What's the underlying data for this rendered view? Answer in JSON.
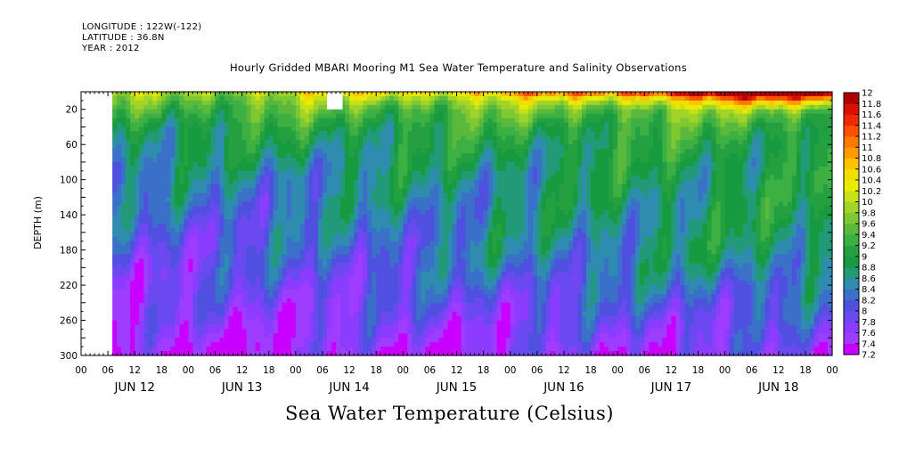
{
  "header": {
    "longitude": "LONGITUDE : 122W(-122)",
    "latitude": "LATITUDE : 36.8N",
    "year": "YEAR : 2012"
  },
  "chart_data": {
    "type": "heatmap",
    "title": "Hourly Gridded MBARI Mooring M1 Sea Water Temperature and Salinity Observations",
    "footer_label": "Sea Water Temperature (Celsius)",
    "ylabel": "DEPTH (m)",
    "ylim": [
      300,
      0
    ],
    "y_ticks": [
      20,
      60,
      100,
      140,
      180,
      220,
      260,
      300
    ],
    "x_range_hours": [
      0,
      168
    ],
    "x_hour_labels": [
      "00",
      "06",
      "12",
      "18",
      "00",
      "06",
      "12",
      "18",
      "00",
      "06",
      "12",
      "18",
      "00",
      "06",
      "12",
      "18",
      "00",
      "06",
      "12",
      "18",
      "00",
      "06",
      "12",
      "18",
      "00",
      "06",
      "12",
      "18",
      "00"
    ],
    "day_labels": [
      "JUN 12",
      "JUN 13",
      "JUN 14",
      "JUN 15",
      "JUN 16",
      "JUN 17",
      "JUN 18"
    ],
    "data_start_hour": 7,
    "missing_block": {
      "hour_start": 55,
      "hour_end": 58.5,
      "depth_start": 0,
      "depth_end": 20
    },
    "colorbar": {
      "levels": [
        "7.2",
        "7.4",
        "7.6",
        "7.8",
        "8",
        "8.2",
        "8.4",
        "8.6",
        "8.8",
        "9",
        "9.2",
        "9.4",
        "9.6",
        "9.8",
        "10",
        "10.2",
        "10.4",
        "10.6",
        "10.8",
        "11",
        "11.2",
        "11.4",
        "11.6",
        "11.8",
        "12"
      ],
      "colors": [
        "#c800ff",
        "#9f3dff",
        "#8c3cff",
        "#6a4af0",
        "#5050e0",
        "#3a70c8",
        "#2f8cb0",
        "#229a78",
        "#179a40",
        "#25a040",
        "#3cb042",
        "#5ab83c",
        "#7ec832",
        "#a0d428",
        "#c8e018",
        "#e8ec00",
        "#f0e000",
        "#ffc400",
        "#ff9a00",
        "#ff7800",
        "#ff5000",
        "#f02800",
        "#d81000",
        "#b00000"
      ]
    },
    "depth_profile": {
      "depths": [
        0,
        10,
        20,
        40,
        60,
        80,
        100,
        120,
        140,
        160,
        180,
        200,
        220,
        240,
        260,
        280,
        300
      ],
      "temp_early": [
        9.9,
        9.6,
        9.4,
        9.0,
        8.8,
        8.6,
        8.4,
        8.3,
        8.2,
        8.1,
        8.0,
        7.9,
        7.8,
        7.7,
        7.6,
        7.45,
        7.35
      ],
      "temp_late": [
        11.6,
        10.3,
        9.7,
        9.3,
        9.1,
        9.0,
        8.95,
        8.9,
        8.85,
        8.8,
        8.75,
        8.6,
        8.4,
        8.2,
        8.0,
        7.85,
        7.7
      ]
    }
  }
}
